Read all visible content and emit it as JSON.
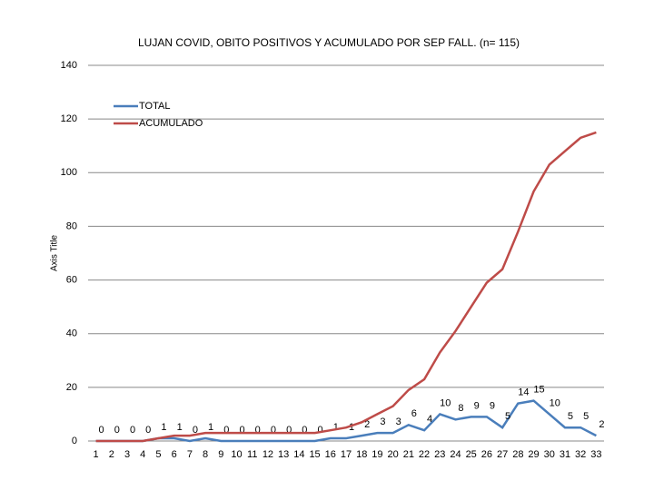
{
  "chart_data": {
    "type": "line",
    "title": "LUJAN COVID, OBITO POSITIVOS Y ACUMULADO POR SEP FALL. (n= 115)",
    "y_axis_label": "Axis Title",
    "categories": [
      "1",
      "2",
      "3",
      "4",
      "5",
      "6",
      "7",
      "8",
      "9",
      "10",
      "11",
      "12",
      "13",
      "14",
      "15",
      "16",
      "17",
      "18",
      "19",
      "20",
      "21",
      "22",
      "23",
      "24",
      "25",
      "26",
      "27",
      "28",
      "29",
      "30",
      "31",
      "32",
      "33"
    ],
    "series": [
      {
        "name": "TOTAL",
        "color": "#4a7ebb",
        "data_labels": true,
        "values": [
          0,
          0,
          0,
          0,
          1,
          1,
          0,
          1,
          0,
          0,
          0,
          0,
          0,
          0,
          0,
          1,
          1,
          2,
          3,
          3,
          6,
          4,
          10,
          8,
          9,
          9,
          5,
          14,
          15,
          10,
          5,
          5,
          2
        ]
      },
      {
        "name": "ACUMULADO",
        "color": "#be4b48",
        "data_labels": false,
        "values": [
          0,
          0,
          0,
          0,
          1,
          2,
          2,
          3,
          3,
          3,
          3,
          3,
          3,
          3,
          3,
          4,
          5,
          7,
          10,
          13,
          19,
          23,
          33,
          41,
          50,
          59,
          64,
          78,
          93,
          103,
          108,
          113,
          115
        ]
      }
    ],
    "ylim": [
      0,
      140
    ],
    "yticks": [
      0,
      20,
      40,
      60,
      80,
      100,
      120,
      140
    ],
    "grid": true,
    "legend": "upper left"
  }
}
